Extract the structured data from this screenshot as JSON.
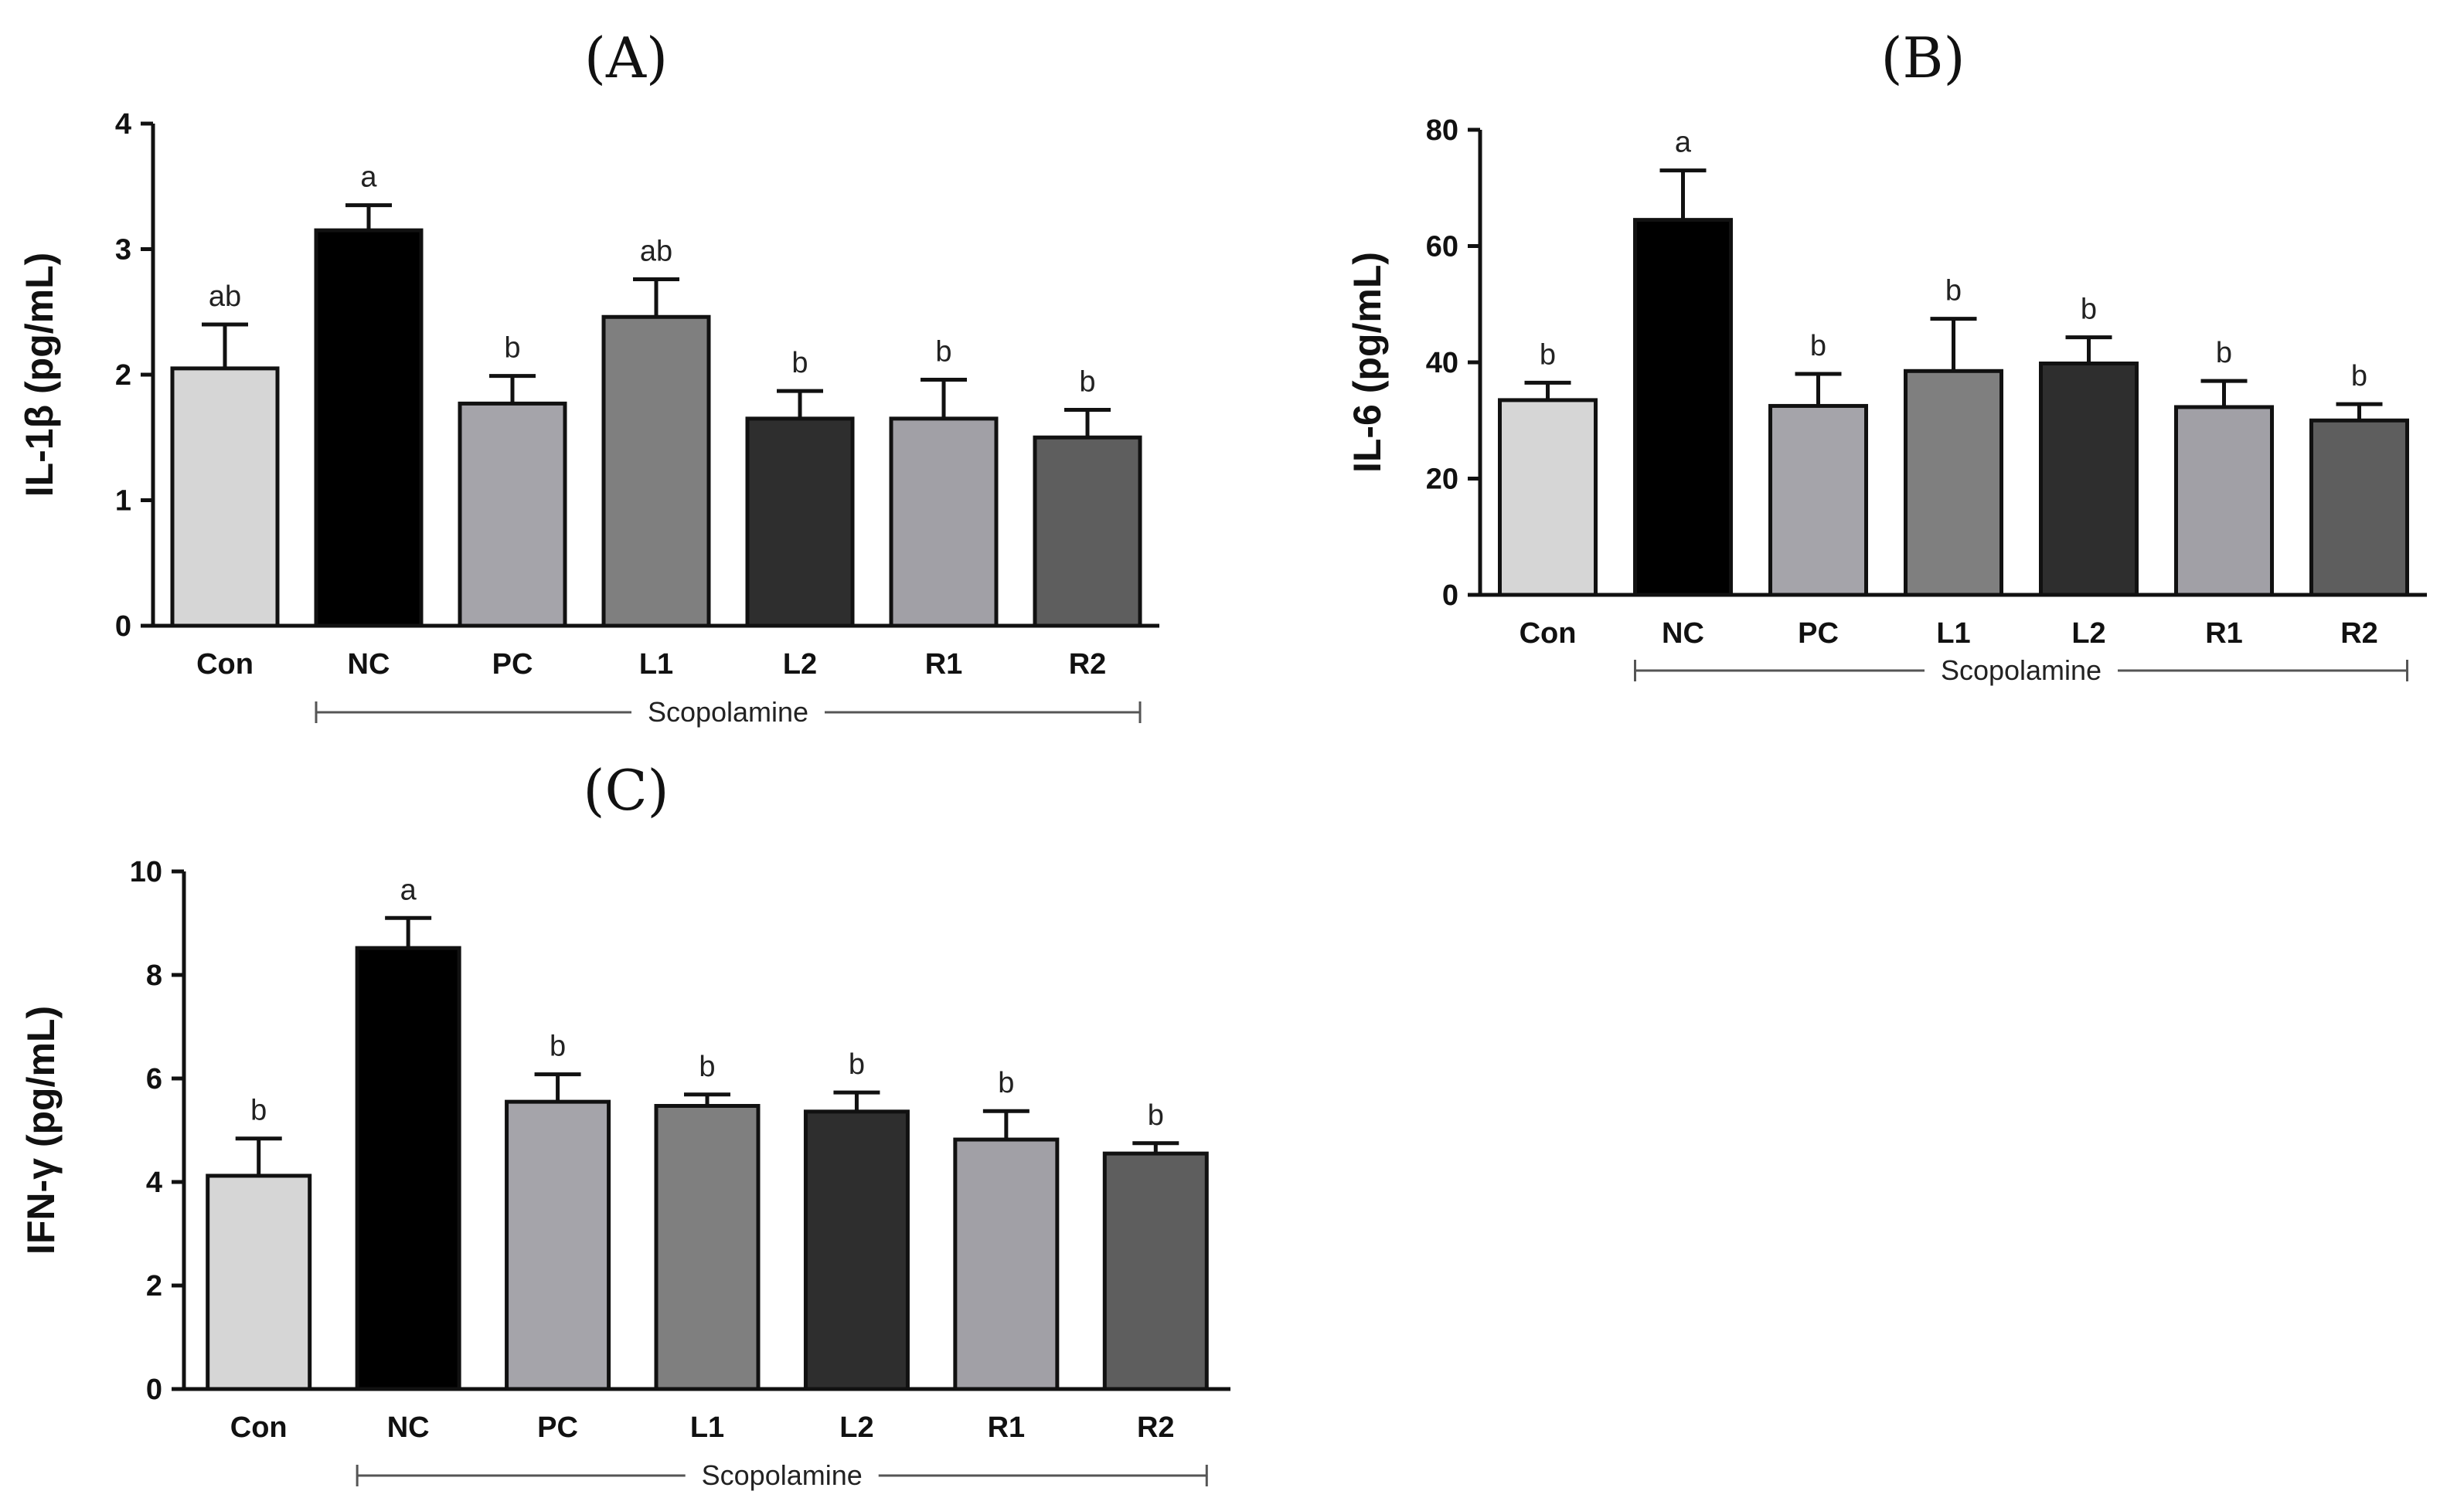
{
  "chart_data": [
    {
      "type": "bar",
      "panel": "(A)",
      "ylabel": "IL-1β (pg/mL)",
      "ylim": [
        0,
        4
      ],
      "yticks": [
        0,
        1,
        2,
        3,
        4
      ],
      "categories": [
        "Con",
        "NC",
        "PC",
        "L1",
        "L2",
        "R1",
        "R2"
      ],
      "values": [
        2.05,
        3.15,
        1.77,
        2.46,
        1.65,
        1.65,
        1.5
      ],
      "errors": [
        0.35,
        0.2,
        0.22,
        0.3,
        0.22,
        0.31,
        0.22
      ],
      "significance": [
        "ab",
        "a",
        "b",
        "ab",
        "b",
        "b",
        "b"
      ],
      "colors": [
        "#d6d6d6",
        "#000000",
        "#a5a4aa",
        "#7f7f7f",
        "#2e2e2e",
        "#a1a0a6",
        "#5e5e5e"
      ],
      "treatment_label": "Scopolamine",
      "treatment_span": [
        "NC",
        "R2"
      ]
    },
    {
      "type": "bar",
      "panel": "(B)",
      "ylabel": "IL-6 (pg/mL)",
      "ylim": [
        0,
        80
      ],
      "yticks": [
        0,
        20,
        40,
        60,
        80
      ],
      "categories": [
        "Con",
        "NC",
        "PC",
        "L1",
        "L2",
        "R1",
        "R2"
      ],
      "values": [
        33.5,
        64.5,
        32.5,
        38.5,
        39.8,
        32.3,
        30.0
      ],
      "errors": [
        3.0,
        8.5,
        5.5,
        9.0,
        4.5,
        4.5,
        2.8
      ],
      "significance": [
        "b",
        "a",
        "b",
        "b",
        "b",
        "b",
        "b"
      ],
      "colors": [
        "#d6d6d6",
        "#000000",
        "#a5a4aa",
        "#7f7f7f",
        "#2e2e2e",
        "#a1a0a6",
        "#5e5e5e"
      ],
      "treatment_label": "Scopolamine",
      "treatment_span": [
        "NC",
        "R2"
      ]
    },
    {
      "type": "bar",
      "panel": "(C)",
      "ylabel": "IFN-γ (pg/mL)",
      "ylim": [
        0,
        10
      ],
      "yticks": [
        0,
        2,
        4,
        6,
        8,
        10
      ],
      "categories": [
        "Con",
        "NC",
        "PC",
        "L1",
        "L2",
        "R1",
        "R2"
      ],
      "values": [
        4.12,
        8.52,
        5.55,
        5.47,
        5.36,
        4.82,
        4.55
      ],
      "errors": [
        0.72,
        0.58,
        0.53,
        0.22,
        0.37,
        0.55,
        0.2
      ],
      "significance": [
        "b",
        "a",
        "b",
        "b",
        "b",
        "b",
        "b"
      ],
      "colors": [
        "#d6d6d6",
        "#000000",
        "#a5a4aa",
        "#7f7f7f",
        "#2e2e2e",
        "#a1a0a6",
        "#5e5e5e"
      ],
      "treatment_label": "Scopolamine",
      "treatment_span": [
        "NC",
        "R2"
      ]
    }
  ]
}
